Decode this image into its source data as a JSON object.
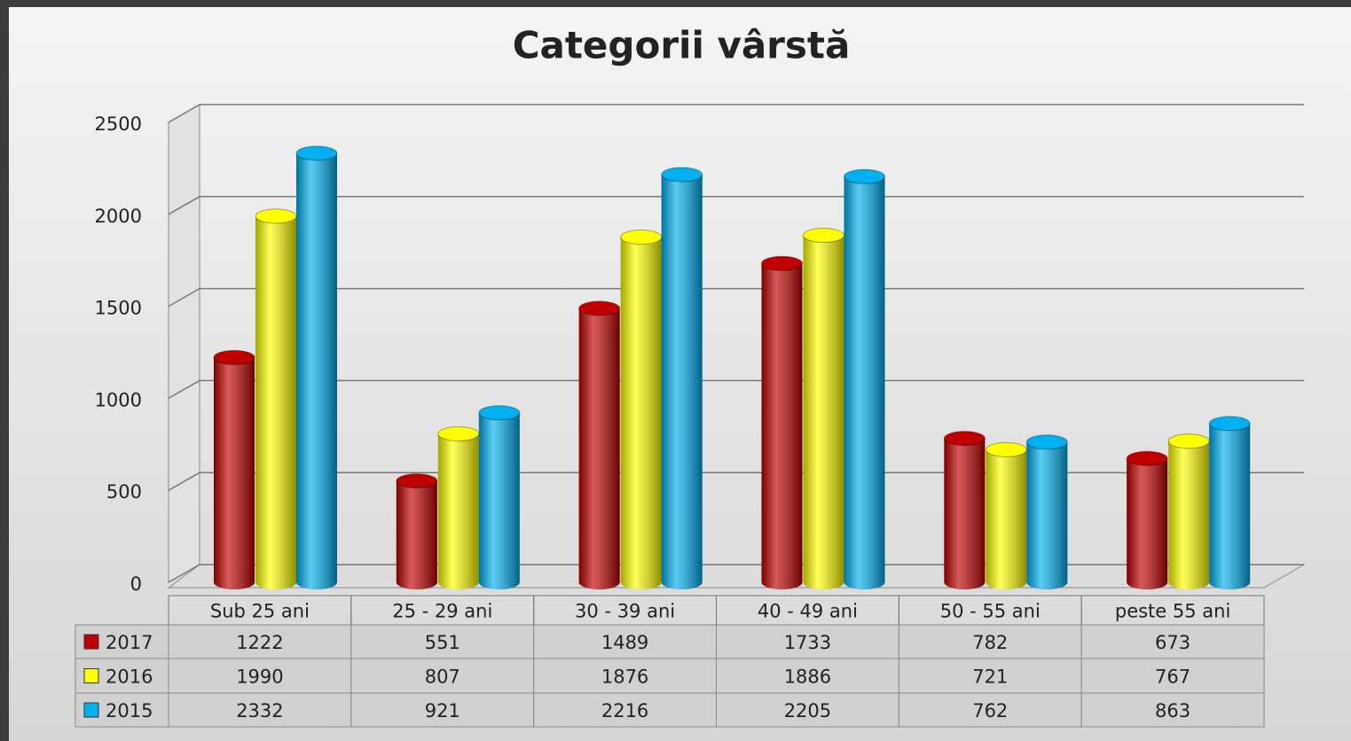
{
  "chart_data": {
    "type": "bar3d",
    "title": "Categorii vârstă",
    "categories": [
      "Sub 25 ani",
      "25 - 29 ani",
      "30 - 39 ani",
      "40 - 49 ani",
      "50 - 55 ani",
      "peste 55 ani"
    ],
    "series": [
      {
        "name": "2017",
        "color": "#c00000",
        "values": [
          1222,
          551,
          1489,
          1733,
          782,
          673
        ]
      },
      {
        "name": "2016",
        "color": "#ffff00",
        "values": [
          1990,
          807,
          1876,
          1886,
          721,
          767
        ]
      },
      {
        "name": "2015",
        "color": "#00b0f0",
        "values": [
          2332,
          921,
          2216,
          2205,
          762,
          863
        ]
      }
    ],
    "ylim": [
      0,
      2500
    ],
    "yticks": [
      0,
      500,
      1000,
      1500,
      2000,
      2500
    ],
    "grid": true
  }
}
